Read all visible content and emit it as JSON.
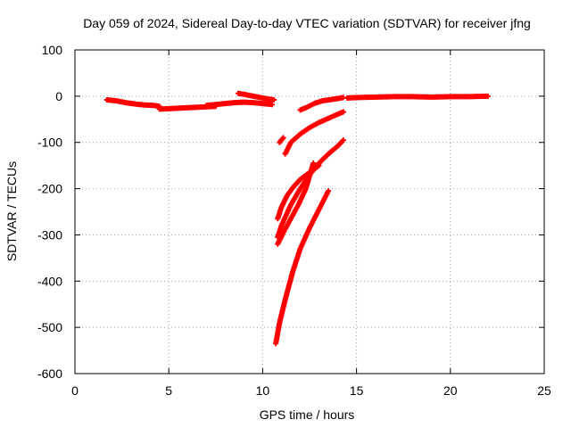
{
  "chart_data": {
    "type": "scatter",
    "title": "Day 059 of 2024, Sidereal Day-to-day VTEC variation (SDTVAR) for receiver jfng",
    "xlabel": "GPS time / hours",
    "ylabel": "SDTVAR / TECUs",
    "xlim": [
      0,
      25
    ],
    "ylim": [
      -600,
      100
    ],
    "xticks": [
      "0",
      "5",
      "10",
      "15",
      "20",
      "25"
    ],
    "yticks": [
      "100",
      "0",
      "-100",
      "-200",
      "-300",
      "-400",
      "-500",
      "-600"
    ],
    "grid": true,
    "marker_color": "#ff0000",
    "tracks": [
      {
        "x": [
          1.7,
          2.2,
          2.7,
          3.2,
          3.7,
          4.2,
          4.5
        ],
        "y": [
          -8,
          -10,
          -14,
          -17,
          -19,
          -20,
          -22
        ]
      },
      {
        "x": [
          4.5,
          5.0,
          5.5,
          6.0,
          6.5,
          7.0,
          7.5
        ],
        "y": [
          -28,
          -27,
          -26,
          -25,
          -24,
          -23,
          -22
        ]
      },
      {
        "x": [
          7.0,
          7.5,
          8.0,
          8.5,
          9.0,
          9.5,
          10.0,
          10.5
        ],
        "y": [
          -20,
          -18,
          -16,
          -14,
          -13,
          -14,
          -16,
          -18
        ]
      },
      {
        "x": [
          8.7,
          9.0,
          9.5,
          10.0,
          10.6
        ],
        "y": [
          6,
          4,
          0,
          -4,
          -8
        ]
      },
      {
        "x": [
          10.9,
          11.1
        ],
        "y": [
          -100,
          -90
        ]
      },
      {
        "x": [
          11.2,
          11.5,
          12.0,
          12.5,
          13.0,
          13.5,
          14.0,
          14.3
        ],
        "y": [
          -125,
          -100,
          -82,
          -68,
          -57,
          -48,
          -39,
          -34
        ]
      },
      {
        "x": [
          12.0,
          12.3,
          12.8,
          13.2,
          13.7,
          14.0,
          14.3
        ],
        "y": [
          -30,
          -25,
          -15,
          -10,
          -7,
          -5,
          -3
        ]
      },
      {
        "x": [
          14.5,
          15,
          16,
          17,
          18,
          19,
          20,
          21,
          22
        ],
        "y": [
          -4,
          -3,
          -2,
          -1,
          -1,
          -2,
          -1,
          -1,
          0
        ]
      },
      {
        "x": [
          10.8,
          11.0,
          11.3,
          11.6,
          12.0,
          12.5,
          13.0
        ],
        "y": [
          -265,
          -240,
          -215,
          -198,
          -180,
          -165,
          -150
        ]
      },
      {
        "x": [
          10.8,
          11.0,
          11.5,
          12.0,
          12.5,
          13.0,
          13.5,
          14.0,
          14.3
        ],
        "y": [
          -305,
          -280,
          -235,
          -200,
          -170,
          -145,
          -125,
          -108,
          -95
        ]
      },
      {
        "x": [
          10.8,
          11.1,
          11.5,
          11.9,
          12.3,
          12.7
        ],
        "y": [
          -320,
          -295,
          -265,
          -235,
          -200,
          -145
        ]
      },
      {
        "x": [
          10.7,
          10.9,
          11.2,
          11.6,
          12.0,
          12.5,
          13.0,
          13.5
        ],
        "y": [
          -535,
          -490,
          -440,
          -380,
          -330,
          -285,
          -245,
          -205
        ]
      }
    ]
  }
}
